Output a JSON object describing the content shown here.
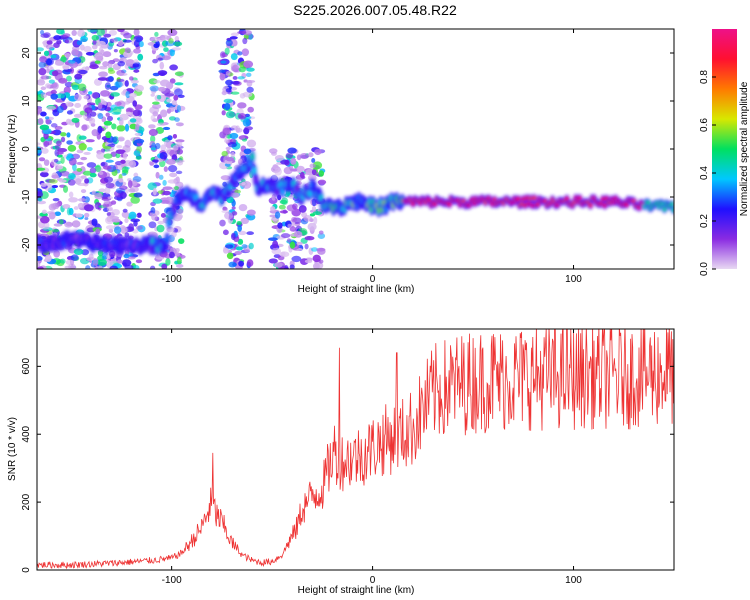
{
  "figure_title": "S225.2026.007.05.48.R22",
  "chart_data": [
    {
      "type": "heatmap",
      "title": "S225.2026.007.05.48.R22",
      "xlabel": "Height of straight line (km)",
      "ylabel": "Frequency (Hz)",
      "xlim": [
        -167,
        150
      ],
      "ylim": [
        -25,
        25
      ],
      "xticks": [
        -100,
        0,
        100
      ],
      "yticks": [
        -20,
        -10,
        0,
        10,
        20
      ],
      "colorbar": {
        "label": "Normalized spectral amplitude",
        "range": [
          0,
          1
        ],
        "ticks": [
          "0.0",
          "0.2",
          "0.4",
          "0.6",
          "0.8"
        ],
        "colors": [
          "#e8d8f2",
          "#8a2be2",
          "#1f10ff",
          "#00c8ff",
          "#00e060",
          "#d8e800",
          "#ff7a00",
          "#ff1030",
          "#ee1188"
        ]
      },
      "ridge": {
        "description": "dominant frequency vs height",
        "x": [
          -167,
          -150,
          -130,
          -115,
          -103,
          -100,
          -95,
          -90,
          -85,
          -80,
          -75,
          -70,
          -65,
          -60,
          -57,
          -55,
          -50,
          -45,
          -40,
          -35,
          -30,
          -25,
          -20,
          -15,
          -10,
          -5,
          0,
          5,
          10,
          15,
          50,
          100,
          120,
          140,
          150
        ],
        "y": [
          -20,
          -19,
          -20,
          -20,
          -20,
          -13,
          -9,
          -10,
          -12,
          -9,
          -10,
          -7,
          -5,
          -2,
          -8,
          -7,
          -8,
          -8,
          -7,
          -10,
          -8,
          -11,
          -12,
          -12,
          -11,
          -11,
          -12,
          -12,
          -11,
          -11,
          -11,
          -11,
          -11,
          -12,
          -12
        ]
      },
      "noise_regions": [
        {
          "x": [
            -167,
            -115
          ],
          "y": [
            -25,
            25
          ],
          "note": "scattered purple speckle"
        },
        {
          "x": [
            -110,
            -95
          ],
          "y": [
            -25,
            25
          ]
        },
        {
          "x": [
            -75,
            -60
          ],
          "y": [
            -25,
            25
          ]
        },
        {
          "x": [
            -50,
            -25
          ],
          "y": [
            -25,
            0
          ]
        }
      ],
      "strong_band": {
        "x": [
          15,
          150
        ],
        "y": -11,
        "peak_amplitude": 0.95
      }
    },
    {
      "type": "line",
      "xlabel": "Height of straight line (km)",
      "ylabel": "SNR (10 * v/v)",
      "xlim": [
        -167,
        150
      ],
      "ylim": [
        0,
        710
      ],
      "xticks": [
        -100,
        0,
        100
      ],
      "yticks": [
        0,
        200,
        400,
        600
      ],
      "series": [
        {
          "name": "SNR",
          "color": "#ee3333",
          "envelope_x": [
            -167,
            -150,
            -130,
            -110,
            -100,
            -95,
            -90,
            -85,
            -82,
            -80,
            -78,
            -75,
            -70,
            -65,
            -60,
            -55,
            -50,
            -45,
            -42,
            -38,
            -35,
            -30,
            -25,
            -22,
            -19,
            -15,
            -10,
            -5,
            0,
            5,
            10,
            15,
            20,
            25,
            30,
            40,
            50,
            60,
            70,
            80,
            90,
            100,
            110,
            120,
            130,
            140,
            150
          ],
          "envelope_y": [
            15,
            15,
            20,
            28,
            35,
            50,
            85,
            125,
            170,
            200,
            165,
            140,
            80,
            45,
            28,
            22,
            25,
            45,
            80,
            120,
            180,
            220,
            240,
            300,
            350,
            320,
            330,
            340,
            360,
            380,
            390,
            400,
            420,
            470,
            520,
            545,
            555,
            560,
            565,
            570,
            570,
            570,
            575,
            570,
            575,
            580,
            585
          ],
          "spikes": [
            {
              "x": -79.5,
              "y": 345
            },
            {
              "x": -16.5,
              "y": 655
            },
            {
              "x": 12,
              "y": 640
            },
            {
              "x": 60,
              "y": 695
            },
            {
              "x": 147,
              "y": 700
            }
          ]
        }
      ]
    }
  ]
}
